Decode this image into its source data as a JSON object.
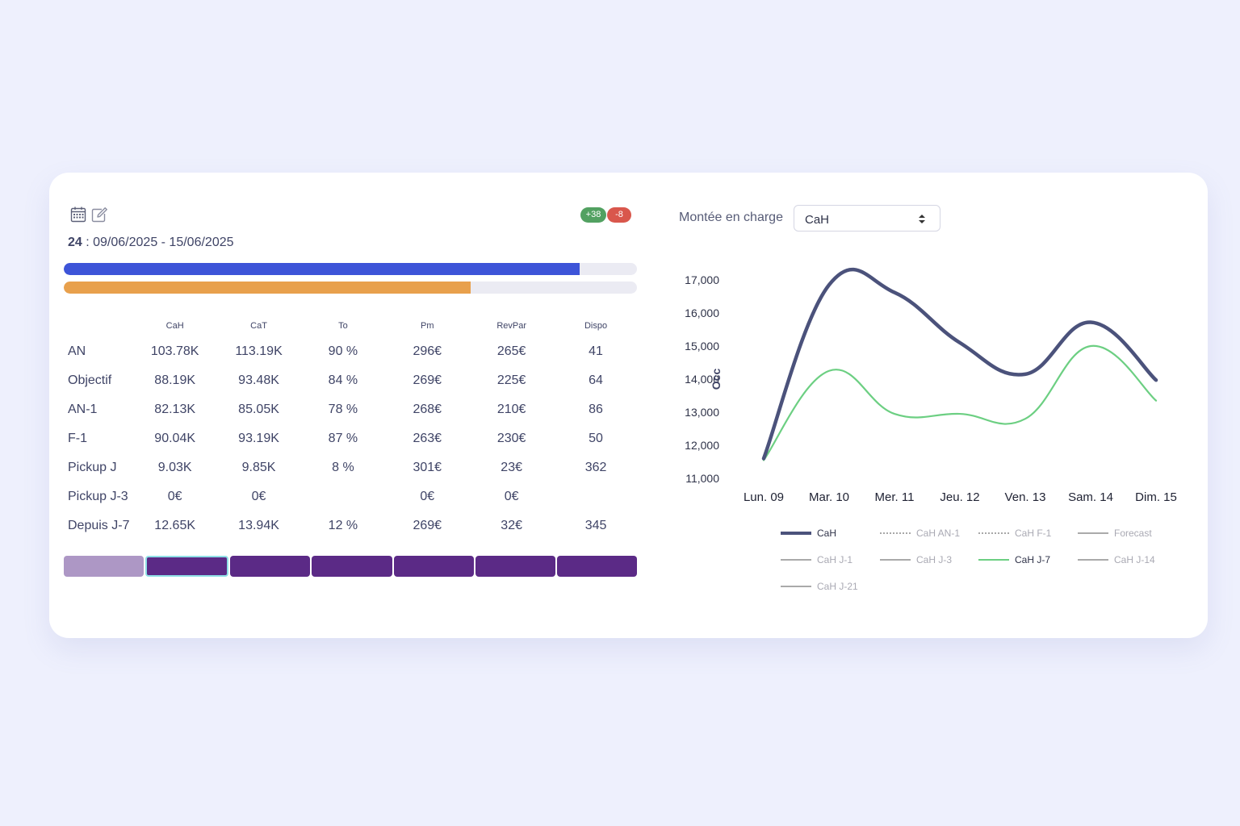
{
  "header": {
    "week": "24",
    "date_range": " : 09/06/2025 - 15/06/2025",
    "badge_up": "+38",
    "badge_down": "-8"
  },
  "icons": [
    "calendar-icon",
    "edit-icon",
    "sort-arrows-icon"
  ],
  "progress": {
    "bar1": {
      "fraction": 0.9,
      "color": "#3d54d8"
    },
    "bar2": {
      "fraction": 0.71,
      "color": "#e8a04c"
    }
  },
  "table": {
    "headers": [
      "",
      "CaH",
      "CaT",
      "To",
      "Pm",
      "RevPar",
      "Dispo"
    ],
    "rows": [
      {
        "label": "AN",
        "cells": [
          "103.78K",
          "113.19K",
          "90 %",
          "296€",
          "265€",
          "41"
        ]
      },
      {
        "label": "Objectif",
        "cells": [
          "88.19K",
          "93.48K",
          "84 %",
          "269€",
          "225€",
          "64"
        ]
      },
      {
        "label": "AN-1",
        "cells": [
          "82.13K",
          "85.05K",
          "78 %",
          "268€",
          "210€",
          "86"
        ]
      },
      {
        "label": "F-1",
        "cells": [
          "90.04K",
          "93.19K",
          "87 %",
          "263€",
          "230€",
          "50"
        ]
      },
      {
        "label": "Pickup J",
        "cells": [
          "9.03K",
          "9.85K",
          "8 %",
          "301€",
          "23€",
          "362"
        ]
      },
      {
        "label": "Pickup J-3",
        "cells": [
          "0€",
          "0€",
          "",
          "0€",
          "0€",
          ""
        ]
      },
      {
        "label": "Depuis J-7",
        "cells": [
          "12.65K",
          "13.94K",
          "12 %",
          "269€",
          "32€",
          "345"
        ]
      }
    ]
  },
  "colors": {
    "accent_blue": "#3d54d8",
    "accent_orange": "#e8a04c",
    "tab_purple": "#5b2a86",
    "tab_inactive": "#ad97c5",
    "badge_green": "#52a161",
    "badge_red": "#d9574c"
  },
  "control": {
    "label": "Montée en charge",
    "selected": "CaH"
  },
  "chart_data": {
    "type": "line",
    "ylabel": "Occ",
    "ylim": [
      11000,
      17000
    ],
    "yticks": [
      "11,000",
      "12,000",
      "13,000",
      "14,000",
      "15,000",
      "16,000",
      "17,000"
    ],
    "categories": [
      "Lun. 09",
      "Mar. 10",
      "Mer. 11",
      "Jeu. 12",
      "Ven. 13",
      "Sam. 14",
      "Dim. 15"
    ],
    "grid": false,
    "legend_position": "bottom",
    "series": [
      {
        "name": "CaH",
        "values": [
          11600,
          16850,
          16620,
          15100,
          14150,
          15720,
          13970
        ],
        "color": "#4b527b",
        "width": 4.5
      },
      {
        "name": "CaH J-7",
        "values": [
          11550,
          14250,
          12950,
          12950,
          12800,
          15000,
          13350
        ],
        "color": "#6ccf82",
        "width": 2.2
      }
    ],
    "legend": [
      {
        "name": "CaH",
        "color": "#4b527b",
        "style": "solid-thick",
        "active": true
      },
      {
        "name": "CaH AN-1",
        "color": "#9c9c9c",
        "style": "dotted",
        "active": false
      },
      {
        "name": "CaH F-1",
        "color": "#9c9c9c",
        "style": "dotted",
        "active": false
      },
      {
        "name": "Forecast",
        "color": "#aaaaaa",
        "style": "solid",
        "active": false
      },
      {
        "name": "CaH J-1",
        "color": "#aaaaaa",
        "style": "solid",
        "active": false
      },
      {
        "name": "CaH J-3",
        "color": "#aaaaaa",
        "style": "solid",
        "active": false
      },
      {
        "name": "CaH J-7",
        "color": "#6ccf82",
        "style": "solid",
        "active": true
      },
      {
        "name": "CaH J-14",
        "color": "#aaaaaa",
        "style": "solid",
        "active": false
      },
      {
        "name": "CaH J-21",
        "color": "#aaaaaa",
        "style": "solid",
        "active": false
      }
    ]
  }
}
